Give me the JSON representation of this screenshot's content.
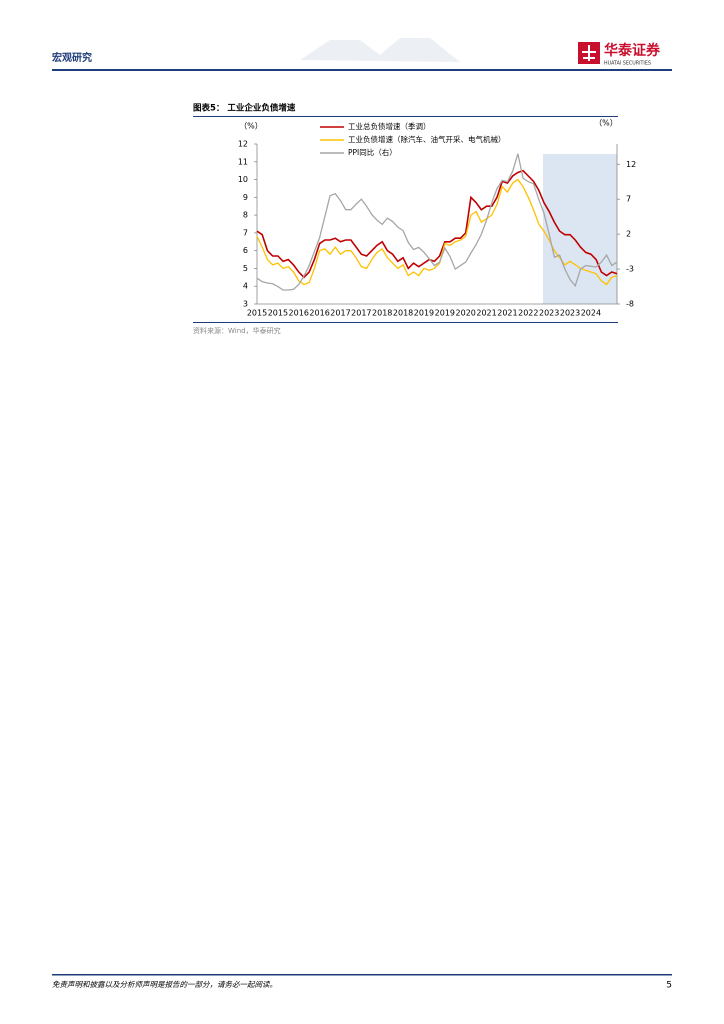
{
  "header": {
    "title": "宏观研究",
    "logo_name": "华泰证券",
    "logo_sub": "HUATAI SECURITIES"
  },
  "figure": {
    "title": "图表5： 工业企业负债增速",
    "source": "资料来源：Wind，华泰研究"
  },
  "chart_data": {
    "type": "line",
    "y_label": "（%）",
    "y2_label": "（%）",
    "categories": [
      "2015",
      null,
      null,
      null,
      "2015",
      null,
      null,
      null,
      "2016",
      null,
      null,
      null,
      "2016",
      null,
      null,
      null,
      "2017",
      null,
      null,
      null,
      "2017",
      null,
      null,
      null,
      "2018",
      null,
      null,
      null,
      "2018",
      null,
      null,
      null,
      "2019",
      null,
      null,
      null,
      "2019",
      null,
      null,
      null,
      "2020",
      null,
      null,
      null,
      "2021",
      null,
      null,
      null,
      "2021",
      null,
      null,
      null,
      "2022",
      null,
      null,
      null,
      "2023",
      null,
      null,
      null,
      "2023",
      null,
      null,
      null,
      "2024",
      null,
      null,
      null,
      null,
      null
    ],
    "series": [
      {
        "name": "工业总负债增速（季调）",
        "color": "#c00000",
        "values": [
          7.1,
          6.9,
          6.0,
          5.7,
          5.7,
          5.4,
          5.5,
          5.2,
          4.8,
          4.5,
          4.8,
          5.5,
          6.4,
          6.6,
          6.6,
          6.7,
          6.5,
          6.6,
          6.6,
          6.2,
          5.8,
          5.7,
          6.0,
          6.3,
          6.5,
          6.0,
          5.8,
          5.4,
          5.6,
          5.0,
          5.3,
          5.1,
          5.3,
          5.5,
          5.4,
          5.7,
          6.5,
          6.5,
          6.7,
          6.7,
          7.0,
          9.0,
          8.7,
          8.3,
          8.5,
          8.5,
          9.0,
          9.9,
          9.8,
          10.2,
          10.4,
          10.5,
          10.2,
          9.9,
          9.4,
          8.7,
          8.2,
          7.6,
          7.1,
          6.9,
          6.9,
          6.6,
          6.2,
          5.9,
          5.8,
          5.5,
          4.8,
          4.6,
          4.8,
          4.7
        ]
      },
      {
        "name": "工业负债增速（除汽车、油气开采、电气机械）",
        "color": "#ffc000",
        "values": [
          6.8,
          6.2,
          5.5,
          5.2,
          5.3,
          5.0,
          5.1,
          4.8,
          4.3,
          4.1,
          4.2,
          5.0,
          6.0,
          6.1,
          5.8,
          6.2,
          5.8,
          6.0,
          6.0,
          5.6,
          5.1,
          5.0,
          5.5,
          5.9,
          6.1,
          5.6,
          5.3,
          5.0,
          5.2,
          4.6,
          4.8,
          4.6,
          5.0,
          4.9,
          5.0,
          5.3,
          6.4,
          6.3,
          6.5,
          6.6,
          6.8,
          8.0,
          8.2,
          7.6,
          7.8,
          8.0,
          8.6,
          9.6,
          9.3,
          9.8,
          10.0,
          9.6,
          9.0,
          8.3,
          7.5,
          7.1,
          6.6,
          6.0,
          5.6,
          5.2,
          5.4,
          5.2,
          5.0,
          4.9,
          4.8,
          4.7,
          4.3,
          4.1,
          4.5,
          4.6
        ]
      },
      {
        "name": "PPI同比（右）",
        "color": "#a6a6a6",
        "axis": "y2",
        "values": [
          -4.3,
          -4.8,
          -5.0,
          -5.1,
          -5.5,
          -6.0,
          -6.0,
          -5.9,
          -5.2,
          -4.0,
          -2.5,
          -0.5,
          1.5,
          4.5,
          7.5,
          7.8,
          6.8,
          5.5,
          5.5,
          6.3,
          7.0,
          6.0,
          4.8,
          4.0,
          3.4,
          4.3,
          3.8,
          3.0,
          2.5,
          0.8,
          -0.2,
          0.1,
          -0.6,
          -1.5,
          -2.5,
          -2.0,
          0.0,
          -1.2,
          -3.0,
          -2.5,
          -2.0,
          -0.7,
          0.5,
          2.0,
          4.0,
          6.5,
          8.5,
          9.7,
          9.5,
          11.0,
          13.5,
          10.0,
          9.5,
          9.2,
          7.0,
          5.0,
          2.0,
          -1.3,
          -1.0,
          -3.0,
          -4.5,
          -5.4,
          -3.0,
          -2.5,
          -2.6,
          -2.7,
          -2.0,
          -1.0,
          -2.5,
          -2.0
        ]
      }
    ],
    "ylim": [
      3,
      12
    ],
    "yticks": [
      3,
      4,
      5,
      6,
      7,
      8,
      9,
      10,
      11,
      12
    ],
    "y2lim": [
      -8,
      14.9
    ],
    "y2ticks": [
      -8,
      -3,
      2,
      7,
      12
    ]
  },
  "footer": {
    "disclaimer": "免责声明和披露以及分析师声明是报告的一部分，请务必一起阅读。",
    "page": "5"
  }
}
